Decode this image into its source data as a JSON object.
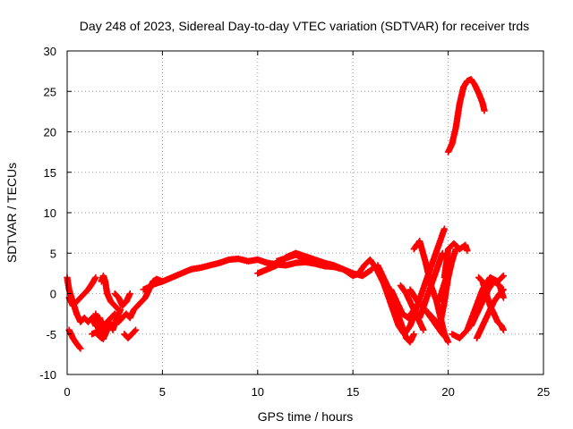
{
  "chart_data": {
    "type": "scatter",
    "title": "Day 248 of 2023, Sidereal Day-to-day VTEC variation (SDTVAR) for receiver trds",
    "xlabel": "GPS time / hours",
    "ylabel": "SDTVAR / TECUs",
    "xlim": [
      0,
      25
    ],
    "ylim": [
      -10,
      30
    ],
    "x_ticks": [
      0,
      5,
      10,
      15,
      20,
      25
    ],
    "y_ticks": [
      -10,
      -5,
      0,
      5,
      10,
      15,
      20,
      25,
      30
    ],
    "grid": true,
    "marker": "plus",
    "series": [
      {
        "name": "sdtvar",
        "color": "#ff0000",
        "tracks": [
          {
            "x": [
              0.0,
              0.1,
              0.3,
              0.5,
              0.7,
              0.9,
              1.1,
              1.3,
              1.5,
              1.7,
              1.9,
              2.1,
              2.3,
              2.5,
              2.7,
              2.9,
              3.1,
              3.3,
              3.5,
              3.7,
              3.9,
              4.1,
              4.3,
              4.5,
              4.7,
              5.0,
              5.5,
              6.0,
              6.5,
              7.0,
              7.5,
              8.0,
              8.5,
              9.0,
              9.5,
              10.0,
              10.5,
              11.0,
              11.5,
              12.0,
              12.5,
              13.0,
              13.5,
              14.0,
              14.5,
              15.0,
              15.3,
              15.6,
              15.9,
              16.2,
              16.5,
              16.8,
              17.0
            ],
            "y": [
              2.0,
              0.5,
              -1.0,
              -2.5,
              -3.5,
              -3.0,
              -3.5,
              -3.0,
              -4.0,
              -3.0,
              -4.0,
              -3.5,
              -3.0,
              -2.5,
              -3.5,
              -3.0,
              -2.5,
              -3.0,
              -2.0,
              -1.5,
              -1.0,
              -0.5,
              0.5,
              1.5,
              1.8,
              1.5,
              2.0,
              2.5,
              3.0,
              3.2,
              3.5,
              3.8,
              4.2,
              4.3,
              4.0,
              4.2,
              3.8,
              3.6,
              3.5,
              3.8,
              3.9,
              3.7,
              3.4,
              3.3,
              3.0,
              2.2,
              2.5,
              3.5,
              4.2,
              3.2,
              1.8,
              0.5,
              -0.5
            ]
          },
          {
            "x": [
              0.1,
              0.3,
              0.5,
              0.7,
              0.9,
              1.1,
              1.3,
              1.5
            ],
            "y": [
              -0.5,
              -1.5,
              -1.0,
              -0.5,
              0.0,
              0.5,
              1.2,
              2.0
            ]
          },
          {
            "x": [
              0.1,
              0.3,
              0.5,
              0.7
            ],
            "y": [
              -4.5,
              -5.5,
              -6.2,
              -6.8
            ]
          },
          {
            "x": [
              1.5,
              1.6,
              1.7,
              1.8,
              1.9,
              2.0,
              2.2,
              2.4,
              2.6,
              2.8
            ],
            "y": [
              -2.5,
              -3.5,
              -4.5,
              -5.5,
              -5.0,
              -4.0,
              -3.5,
              -4.5,
              -3.0,
              -2.0
            ]
          },
          {
            "x": [
              1.3,
              1.5,
              1.7,
              1.9,
              2.1,
              2.3
            ],
            "y": [
              -5.0,
              -4.8,
              -5.3,
              -5.6,
              -4.5,
              -4.0
            ]
          },
          {
            "x": [
              1.8,
              1.9,
              2.0,
              2.1,
              2.3,
              2.5,
              2.7
            ],
            "y": [
              1.5,
              2.2,
              1.5,
              0.0,
              -1.0,
              -1.5,
              -2.0
            ]
          },
          {
            "x": [
              2.5,
              2.7,
              2.9,
              3.1,
              3.3
            ],
            "y": [
              0.0,
              -0.5,
              -1.5,
              -1.0,
              0.0
            ]
          },
          {
            "x": [
              3.0,
              3.2,
              3.4,
              3.6
            ],
            "y": [
              -5.0,
              -5.5,
              -5.0,
              -4.5
            ]
          },
          {
            "x": [
              4.0,
              4.3,
              4.6,
              5.0
            ],
            "y": [
              0.5,
              0.8,
              1.2,
              1.5
            ]
          },
          {
            "x": [
              10.0,
              10.5,
              11.0,
              11.5,
              12.0
            ],
            "y": [
              2.5,
              3.0,
              3.5,
              4.5,
              5.0
            ]
          },
          {
            "x": [
              12.0,
              12.5,
              13.0,
              13.5,
              14.0,
              14.5,
              15.0,
              15.5,
              16.0
            ],
            "y": [
              5.0,
              4.6,
              4.2,
              3.8,
              3.5,
              3.0,
              2.5,
              2.2,
              3.0
            ]
          },
          {
            "x": [
              11.0,
              11.5,
              12.0,
              12.5,
              13.0
            ],
            "y": [
              4.0,
              4.4,
              4.8,
              4.3,
              3.9
            ]
          },
          {
            "x": [
              16.3,
              16.6,
              16.9,
              17.2,
              17.5,
              17.8,
              18.0,
              18.2
            ],
            "y": [
              3.5,
              2.0,
              0.5,
              -1.5,
              -3.5,
              -5.5,
              -6.0,
              -5.0
            ]
          },
          {
            "x": [
              16.5,
              16.8,
              17.1,
              17.4,
              17.7,
              18.0,
              18.3
            ],
            "y": [
              2.0,
              0.0,
              -2.0,
              -4.0,
              -5.0,
              -4.0,
              -2.0
            ]
          },
          {
            "x": [
              17.0,
              17.3,
              17.6,
              17.9,
              18.2,
              18.5
            ],
            "y": [
              0.5,
              -1.0,
              -2.5,
              -3.0,
              -2.0,
              -1.0
            ]
          },
          {
            "x": [
              17.5,
              17.8,
              18.1,
              18.4,
              18.7
            ],
            "y": [
              1.0,
              0.0,
              -1.5,
              -3.0,
              -4.5
            ]
          },
          {
            "x": [
              18.0,
              18.4,
              18.8,
              19.2,
              19.6,
              20.0
            ],
            "y": [
              0.5,
              -1.0,
              -2.0,
              -3.0,
              -4.0,
              -6.0
            ]
          },
          {
            "x": [
              18.0,
              18.3,
              18.6,
              18.9,
              19.2,
              19.5,
              19.8
            ],
            "y": [
              -4.0,
              -2.0,
              0.0,
              2.0,
              4.0,
              6.0,
              8.0
            ]
          },
          {
            "x": [
              18.5,
              18.8,
              19.1,
              19.4,
              19.7
            ],
            "y": [
              -3.0,
              -1.0,
              1.0,
              3.0,
              5.0
            ]
          },
          {
            "x": [
              18.2,
              18.5,
              18.8,
              19.1,
              19.4,
              19.6,
              19.8
            ],
            "y": [
              5.5,
              6.5,
              4.0,
              1.0,
              -1.0,
              -3.0,
              -5.0
            ]
          },
          {
            "x": [
              18.8,
              19.1,
              19.4,
              19.7,
              19.9
            ],
            "y": [
              -2.0,
              -3.0,
              -4.0,
              -5.0,
              -5.5
            ]
          },
          {
            "x": [
              19.5,
              19.7,
              19.9,
              20.0
            ],
            "y": [
              -1.0,
              0.5,
              2.0,
              2.5
            ]
          },
          {
            "x": [
              19.8,
              20.0,
              20.3,
              20.6,
              20.9,
              21.0
            ],
            "y": [
              2.0,
              5.5,
              6.2,
              5.5,
              6.0,
              5.3
            ]
          },
          {
            "x": [
              19.6,
              19.8,
              20.0,
              20.2,
              20.4
            ],
            "y": [
              -3.5,
              -1.0,
              2.0,
              4.0,
              5.5
            ]
          },
          {
            "x": [
              20.2,
              20.6,
              21.0,
              21.4,
              21.8,
              22.2,
              22.6,
              22.9
            ],
            "y": [
              -5.0,
              -5.5,
              -4.5,
              -2.0,
              0.5,
              2.0,
              1.5,
              2.2
            ]
          },
          {
            "x": [
              21.6,
              21.8,
              22.0,
              22.2,
              22.4,
              22.6,
              22.8,
              22.9
            ],
            "y": [
              2.0,
              1.5,
              0.0,
              -1.5,
              -2.5,
              -3.5,
              -4.0,
              -4.5
            ]
          },
          {
            "x": [
              21.2,
              21.5,
              21.8,
              22.1,
              22.4,
              22.7,
              22.9
            ],
            "y": [
              -4.0,
              -2.5,
              -1.0,
              0.5,
              1.5,
              1.0,
              -0.5
            ]
          },
          {
            "x": [
              21.5,
              21.8,
              22.1,
              22.4,
              22.7,
              22.9
            ],
            "y": [
              -5.5,
              -4.0,
              -2.5,
              -1.0,
              0.0,
              0.5
            ]
          },
          {
            "x": [
              20.0,
              20.2,
              20.4,
              20.6,
              20.8,
              21.0,
              21.2,
              21.4,
              21.6,
              21.8,
              21.9
            ],
            "y": [
              17.5,
              18.5,
              20.5,
              23.5,
              25.5,
              26.3,
              26.5,
              25.8,
              24.8,
              23.6,
              22.6
            ]
          }
        ]
      }
    ]
  }
}
